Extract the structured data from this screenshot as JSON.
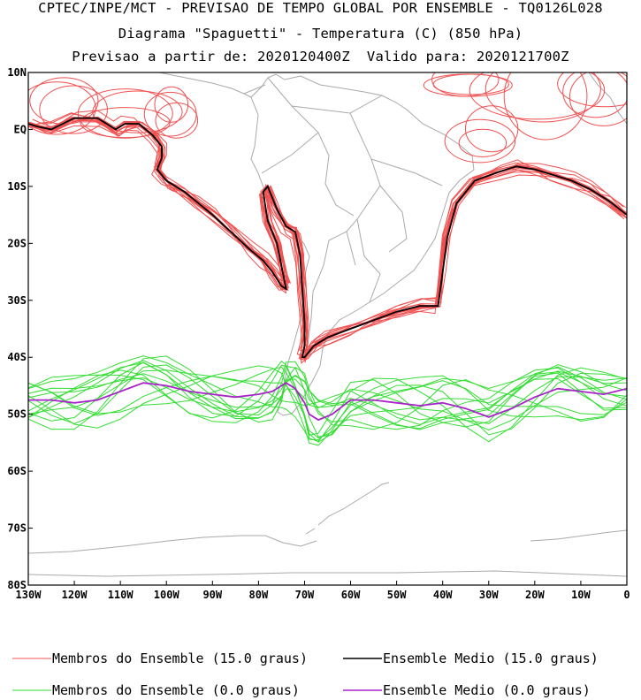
{
  "titles": {
    "line1": "CPTEC/INPE/MCT - PREVISAO DE TEMPO GLOBAL POR ENSEMBLE - TQ0126L028",
    "line2": "Diagrama \"Spaguetti\" - Temperatura (C) (850 hPa)",
    "line3": "Previsao a partir de: 2020120400Z  Valido para: 2020121700Z"
  },
  "chart_data": {
    "type": "line",
    "title": "Diagrama \"Spaguetti\" - Temperatura (C) (850 hPa)",
    "x_ticks": [
      "130W",
      "120W",
      "110W",
      "100W",
      "90W",
      "80W",
      "70W",
      "60W",
      "50W",
      "40W",
      "30W",
      "20W",
      "10W",
      "0"
    ],
    "y_ticks": [
      "10N",
      "EQ",
      "10S",
      "20S",
      "30S",
      "40S",
      "50S",
      "60S",
      "70S",
      "80S"
    ],
    "xlim": [
      -130,
      0
    ],
    "ylim": [
      -80,
      10
    ],
    "colors": {
      "member15": "#f05050",
      "mean15": "#000000",
      "member0": "#33dd33",
      "mean0": "#aa22cc",
      "coast": "#aaaaaa"
    },
    "series": [
      {
        "name": "Ensemble Medio (15.0 graus)",
        "lon": [
          -130,
          -128,
          -125,
          -120,
          -115,
          -111,
          -109,
          -106,
          -103,
          -101,
          -101,
          -102,
          -100,
          -98,
          -96,
          -93,
          -90,
          -86,
          -82,
          -79,
          -77,
          -75,
          -74,
          -74.5,
          -76,
          -78,
          -79,
          -78,
          -76,
          -74,
          -72,
          -71,
          -70.5,
          -70,
          -70,
          -70.5,
          -70,
          -68,
          -65,
          -60,
          -55,
          -50,
          -45,
          -41,
          -40,
          -39,
          -37,
          -33,
          -28,
          -24,
          -20,
          -16,
          -12,
          -8,
          -4,
          0
        ],
        "lat": [
          1,
          0.5,
          0,
          2,
          2,
          0,
          1,
          1,
          -1,
          -3,
          -5,
          -7,
          -9,
          -10,
          -11,
          -13,
          -15,
          -18,
          -21,
          -23,
          -25,
          -27.5,
          -28,
          -26,
          -20,
          -16,
          -11,
          -10,
          -14,
          -17,
          -18,
          -22,
          -28,
          -34,
          -38,
          -40,
          -40,
          -38,
          -36.5,
          -35,
          -33.5,
          -32,
          -31,
          -31,
          -25,
          -19,
          -13,
          -9,
          -7.5,
          -6.5,
          -7,
          -8,
          -9,
          -10.5,
          -12.5,
          -15
        ]
      },
      {
        "name": "Ensemble Medio (0.0 graus)",
        "lon": [
          -130,
          -125,
          -120,
          -115,
          -110,
          -105,
          -100,
          -95,
          -90,
          -85,
          -80,
          -77,
          -75,
          -74,
          -72,
          -70,
          -69,
          -67,
          -64,
          -60,
          -55,
          -50,
          -45,
          -40,
          -35,
          -30,
          -25,
          -20,
          -15,
          -10,
          -5,
          0
        ],
        "lat": [
          -47.5,
          -47.5,
          -48,
          -47.5,
          -46,
          -44.5,
          -45,
          -46,
          -46.5,
          -47,
          -46.5,
          -46,
          -45,
          -44.5,
          -45.5,
          -48,
          -50,
          -51,
          -50,
          -47.5,
          -47.5,
          -48,
          -48.5,
          -48,
          -49,
          -50.5,
          -49,
          -47,
          -45.5,
          -46,
          -46.5,
          -45.5
        ]
      }
    ]
  },
  "legend": {
    "member15": "Membros do Ensemble (15.0 graus)",
    "mean15": "Ensemble Medio (15.0 graus)",
    "member0": "Membros do Ensemble (0.0 graus)",
    "mean0": "Ensemble Medio (0.0 graus)"
  }
}
